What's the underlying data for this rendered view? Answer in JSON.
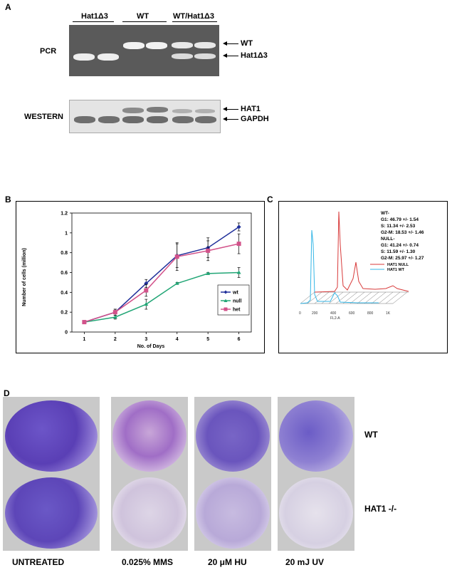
{
  "panel_a": {
    "letter": "A",
    "group_labels": [
      "Hat1Δ3",
      "WT",
      "WT/Hat1Δ3"
    ],
    "pcr_label": "PCR",
    "western_label": "WESTERN",
    "pcr_arrows": [
      "WT",
      "Hat1Δ3"
    ],
    "western_arrows": [
      "HAT1",
      "GAPDH"
    ]
  },
  "panel_b": {
    "letter": "B",
    "chart_data": {
      "type": "line",
      "x": [
        1,
        2,
        3,
        4,
        5,
        6
      ],
      "xlabel": "No. of Days",
      "ylabel": "Number of cells (million)",
      "ylim": [
        0,
        1.2
      ],
      "yticks": [
        "0",
        "0.2",
        "0.4",
        "0.6",
        "0.8",
        "1",
        "1.2"
      ],
      "xticks": [
        "1",
        "2",
        "3",
        "4",
        "5",
        "6"
      ],
      "legend_position": "right",
      "series": [
        {
          "name": "wt",
          "color": "#1f2f9a",
          "marker": "diamond",
          "values": [
            0.1,
            0.2,
            0.49,
            0.77,
            0.85,
            1.06
          ],
          "err": [
            0.0,
            0.03,
            0.04,
            0.12,
            0.1,
            0.04
          ]
        },
        {
          "name": "null",
          "color": "#22a676",
          "marker": "triangle",
          "values": [
            0.1,
            0.15,
            0.28,
            0.49,
            0.59,
            0.6
          ],
          "err": [
            0.0,
            0.02,
            0.05,
            0.01,
            0.01,
            0.05
          ]
        },
        {
          "name": "het",
          "color": "#d2528a",
          "marker": "square",
          "values": [
            0.1,
            0.2,
            0.42,
            0.76,
            0.82,
            0.89
          ],
          "err": [
            0.0,
            0.03,
            0.06,
            0.14,
            0.1,
            0.1
          ]
        }
      ]
    }
  },
  "panel_c": {
    "letter": "C",
    "stats": [
      "WT-",
      "G1: 46.79 +/- 1.54",
      "S: 11.34 +/- 2.53",
      "G2-M: 18.53 +/- 1.46",
      "NULL-",
      "G1: 41.24 +/- 0.74",
      "S: 11.59 +/- 1.30",
      "G2-M: 25.97 +/- 1.27"
    ],
    "legend": [
      {
        "name": "HAT1 NULL",
        "color": "#d83a3a"
      },
      {
        "name": "HAT1 WT",
        "color": "#35b6e6"
      }
    ],
    "xticks": [
      "0",
      "200",
      "400",
      "600",
      "800",
      "1K"
    ],
    "xlabel": "FL2-A"
  },
  "panel_d": {
    "letter": "D",
    "row_labels": [
      "WT",
      "HAT1 -/-"
    ],
    "column_labels": [
      "UNTREATED",
      "0.025% MMS",
      "20 μM HU",
      "20 mJ UV"
    ]
  }
}
